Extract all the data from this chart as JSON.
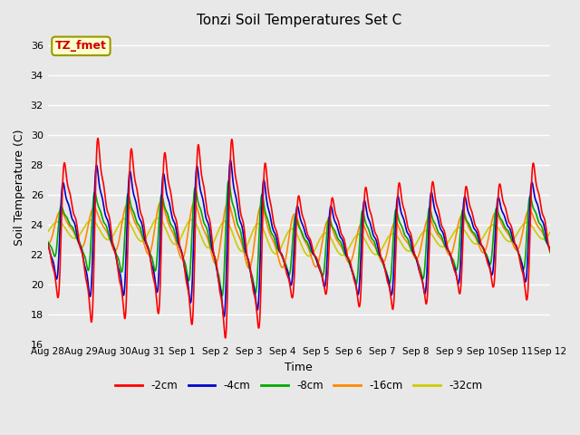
{
  "title": "Tonzi Soil Temperatures Set C",
  "xlabel": "Time",
  "ylabel": "Soil Temperature (C)",
  "ylim": [
    16,
    37
  ],
  "yticks": [
    16,
    18,
    20,
    22,
    24,
    26,
    28,
    30,
    32,
    34,
    36
  ],
  "annotation_text": "TZ_fmet",
  "annotation_color": "#cc0000",
  "annotation_bg": "#ffffcc",
  "annotation_border": "#999900",
  "bg_color": "#e8e8e8",
  "line_colors": {
    "-2cm": "#ff0000",
    "-4cm": "#0000cc",
    "-8cm": "#00aa00",
    "-16cm": "#ff8800",
    "-32cm": "#cccc00"
  },
  "x_tick_labels": [
    "Aug 28",
    "Aug 29",
    "Aug 30",
    "Aug 31",
    "Sep 1",
    "Sep 2",
    "Sep 3",
    "Sep 4",
    "Sep 5",
    "Sep 6",
    "Sep 7",
    "Sep 8",
    "Sep 9",
    "Sep 10",
    "Sep 11",
    "Sep 12"
  ],
  "x_tick_positions": [
    0,
    1,
    2,
    3,
    4,
    5,
    6,
    7,
    8,
    9,
    10,
    11,
    12,
    13,
    14,
    15
  ]
}
